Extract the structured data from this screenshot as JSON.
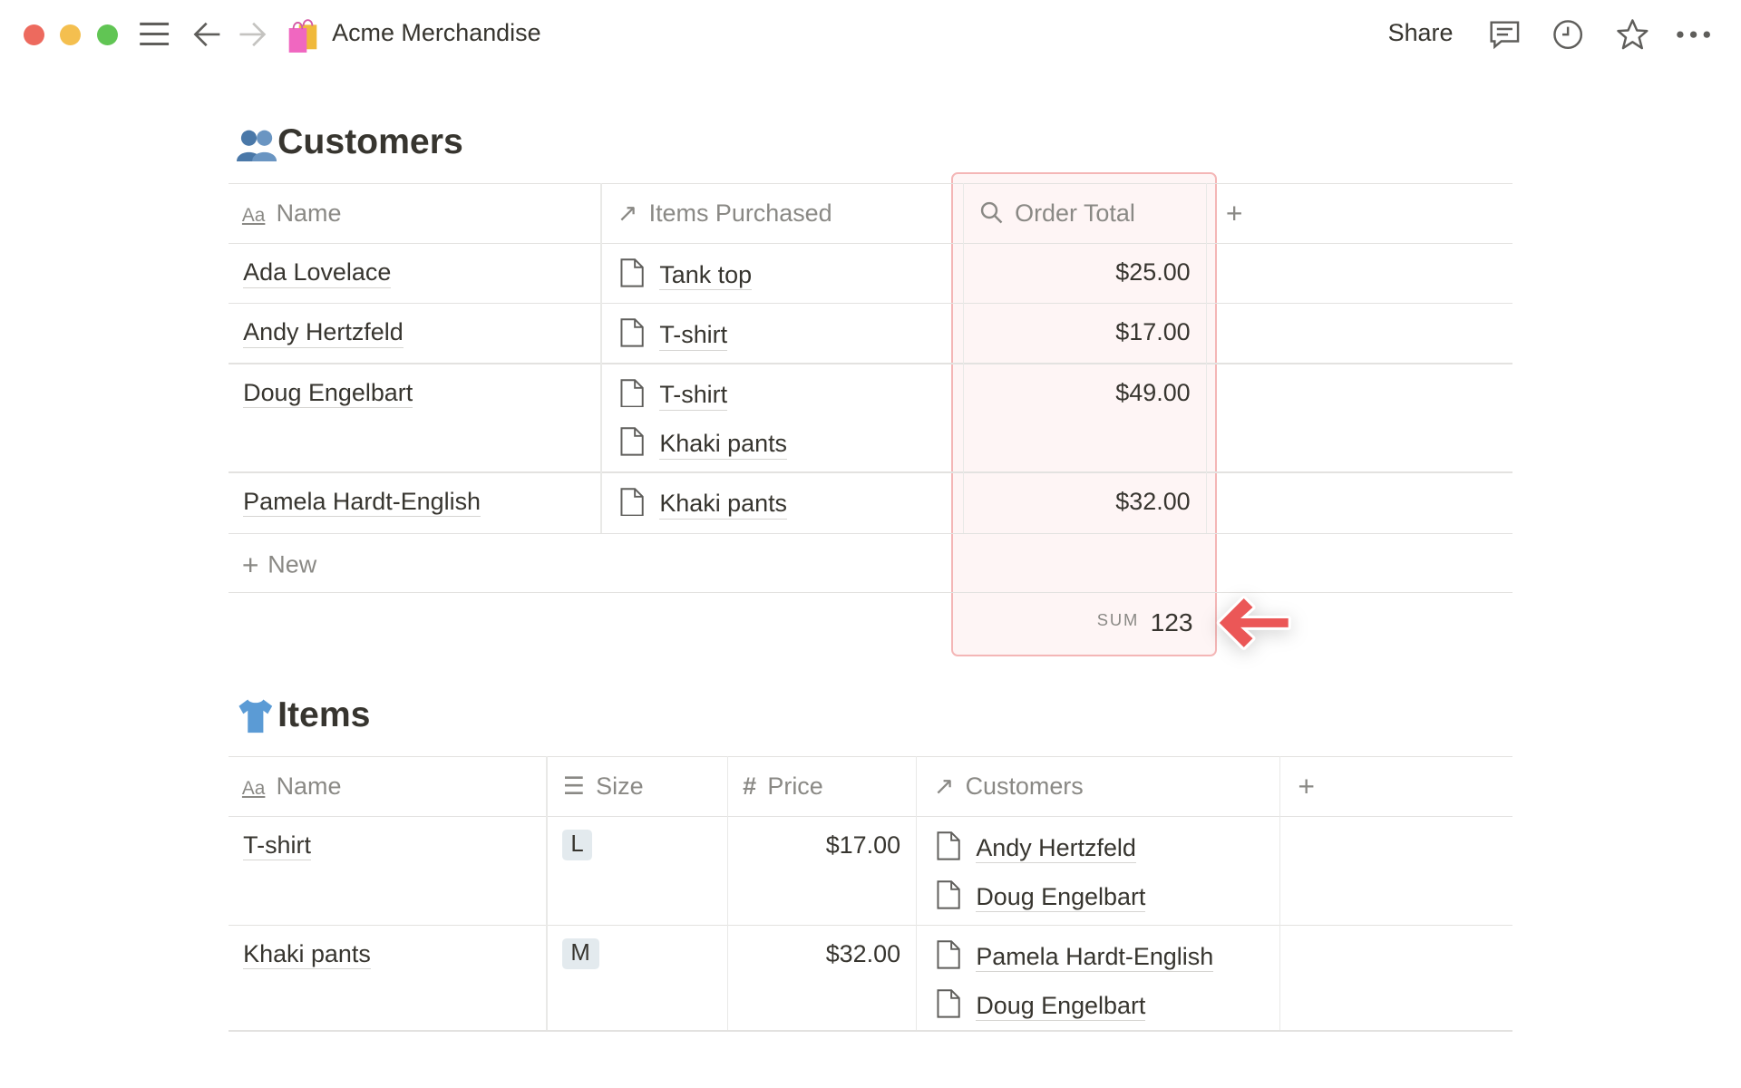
{
  "window": {
    "title": "Acme Merchandise",
    "share": "Share"
  },
  "colors": {
    "highlight": "#eb5757",
    "close": "#ed6a5e",
    "minimize": "#f4bf4f",
    "maximize": "#61c554"
  },
  "customers": {
    "title": "Customers",
    "icon": "people-emoji",
    "columns": [
      "Name",
      "Items Purchased",
      "Order Total"
    ],
    "rows": [
      {
        "name": "Ada Lovelace",
        "items": [
          "Tank top"
        ],
        "total": "$25.00"
      },
      {
        "name": "Andy Hertzfeld",
        "items": [
          "T-shirt"
        ],
        "total": "$17.00"
      },
      {
        "name": "Doug Engelbart",
        "items": [
          "T-shirt",
          "Khaki pants"
        ],
        "total": "$49.00"
      },
      {
        "name": "Pamela Hardt-English",
        "items": [
          "Khaki pants"
        ],
        "total": "$32.00"
      }
    ],
    "new_label": "New",
    "sum_label": "SUM",
    "sum_value": "123"
  },
  "items": {
    "title": "Items",
    "icon": "shirt-emoji",
    "columns": [
      "Name",
      "Size",
      "Price",
      "Customers"
    ],
    "rows": [
      {
        "name": "T-shirt",
        "size": "L",
        "price": "$17.00",
        "customers": [
          "Andy Hertzfeld",
          "Doug Engelbart"
        ]
      },
      {
        "name": "Khaki pants",
        "size": "M",
        "price": "$32.00",
        "customers": [
          "Pamela Hardt-English",
          "Doug Engelbart"
        ]
      }
    ]
  }
}
